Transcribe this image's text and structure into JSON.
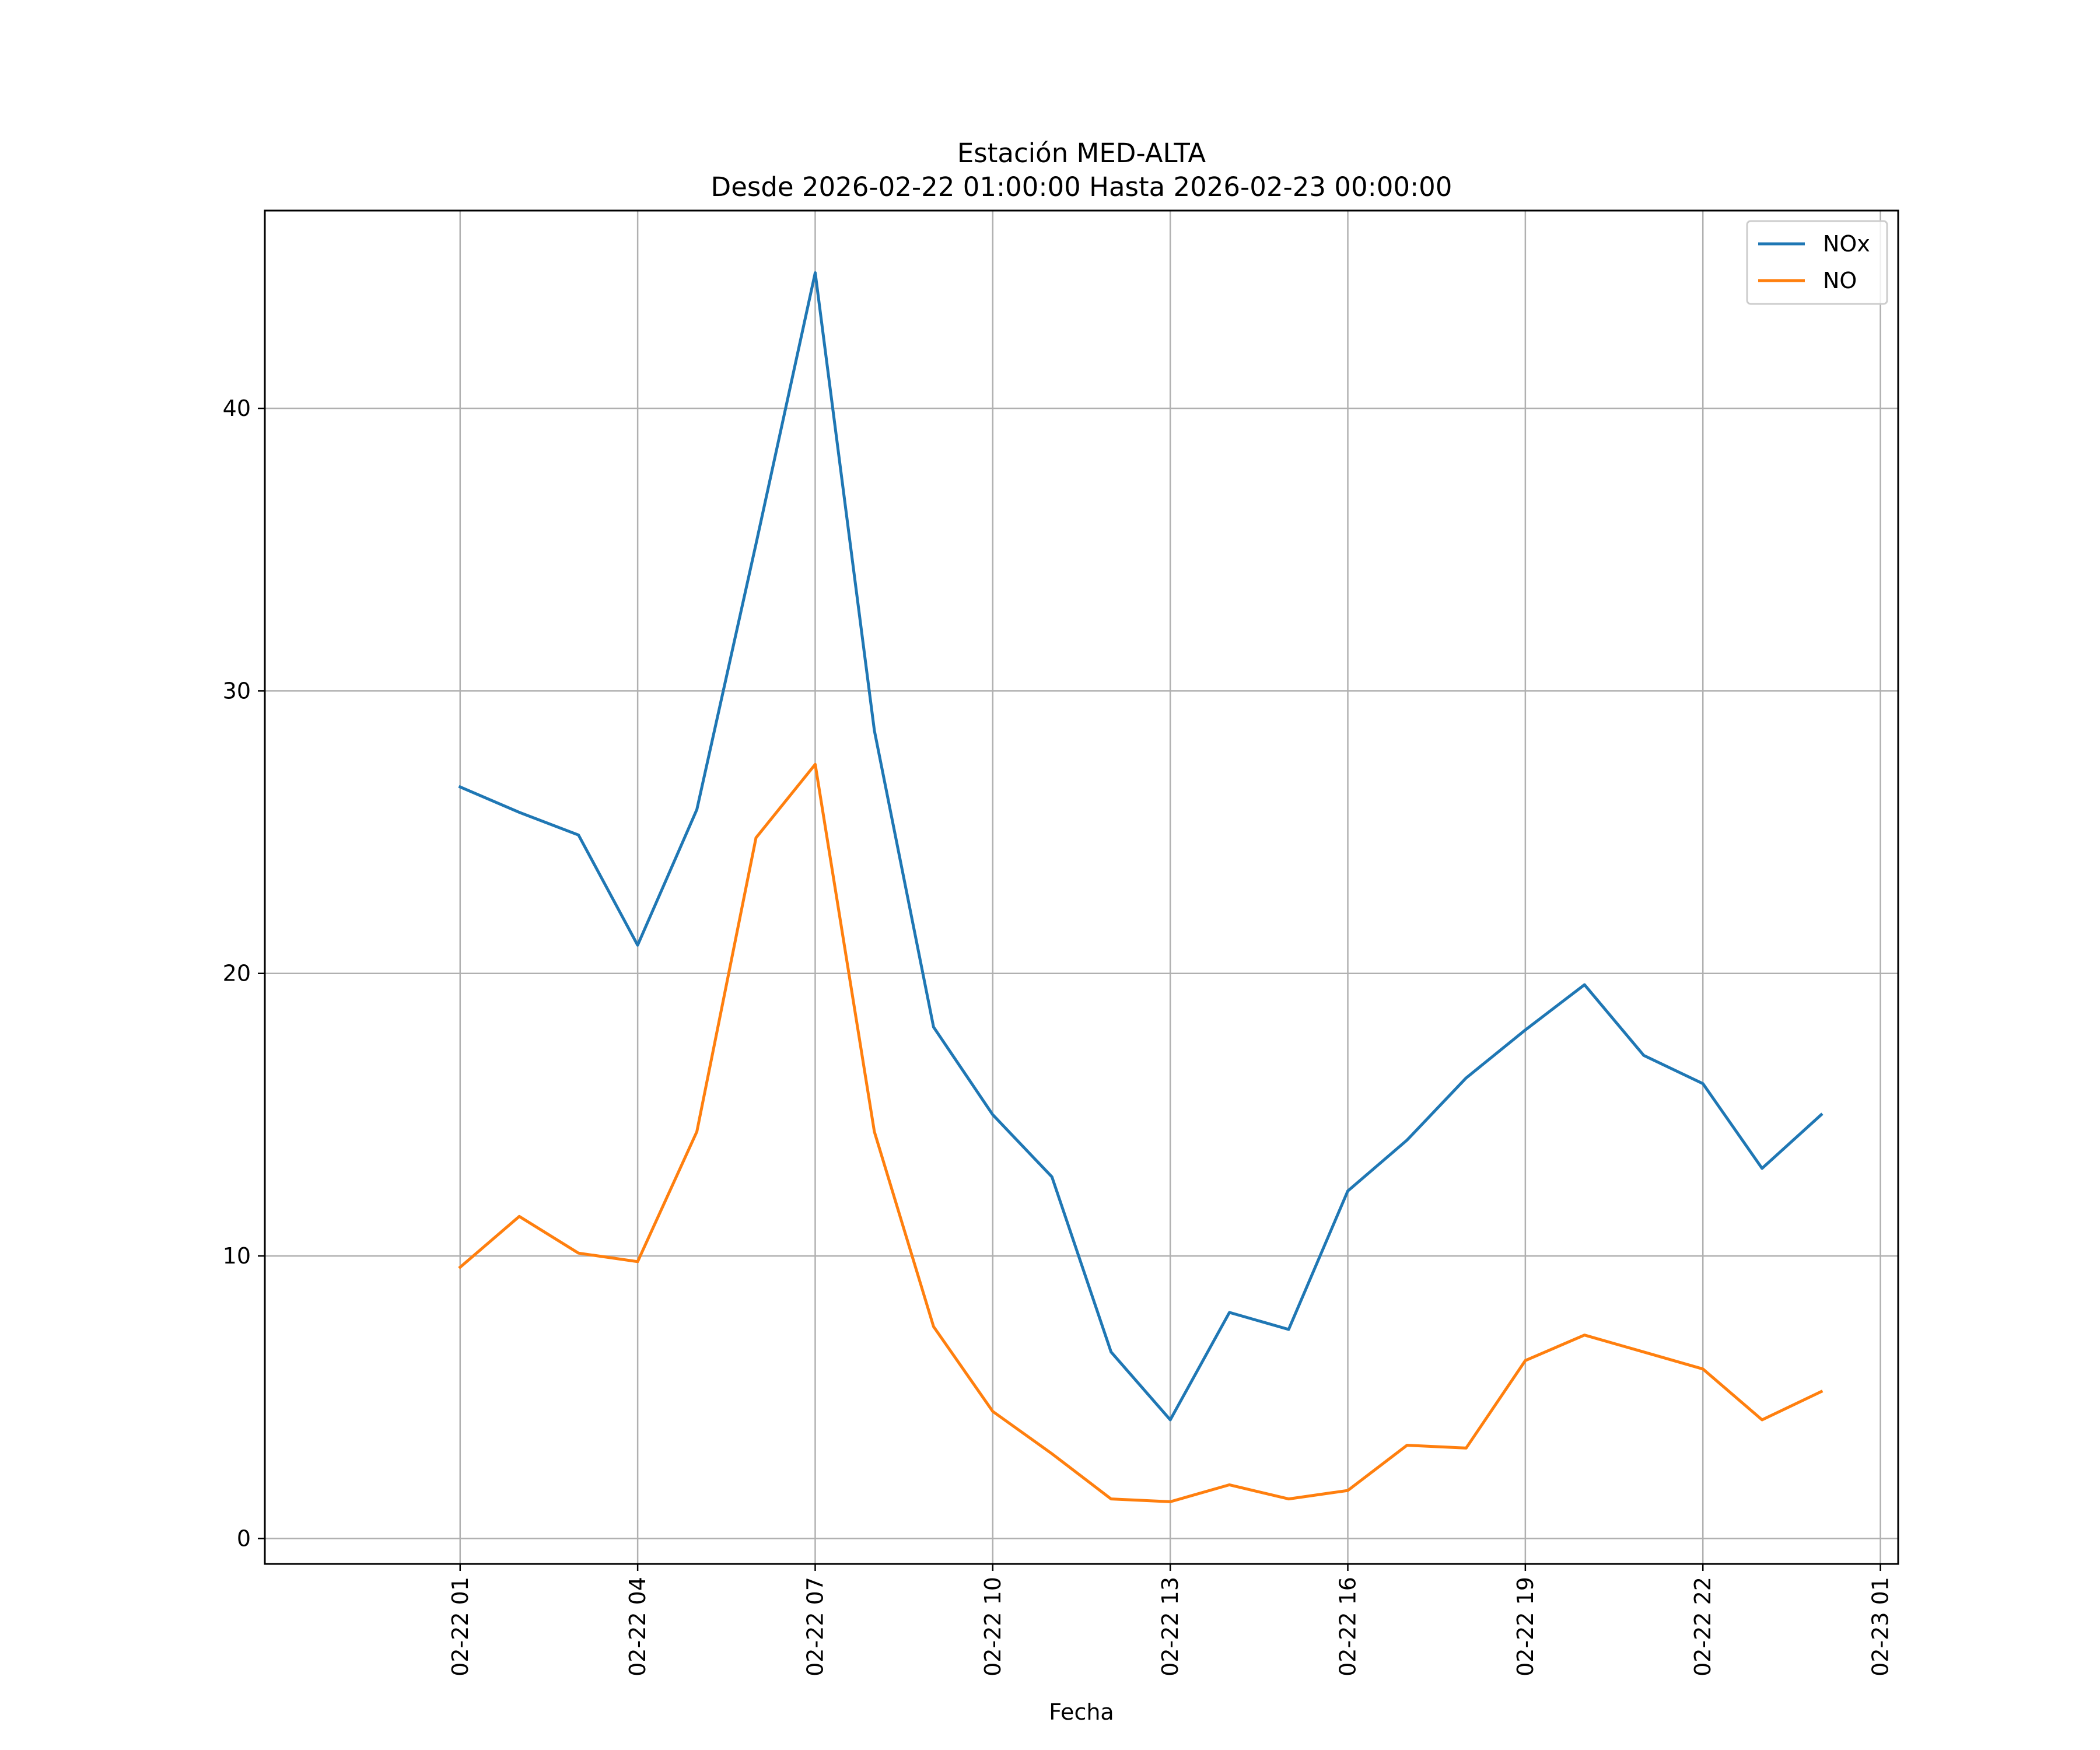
{
  "chart_data": {
    "type": "line",
    "title": "Estación MED-ALTA",
    "subtitle": "Desde 2026-02-22 01:00:00 Hasta 2026-02-23 00:00:00",
    "xlabel": "Fecha",
    "ylabel": "",
    "x": [
      "2026-02-22 01:00",
      "2026-02-22 02:00",
      "2026-02-22 03:00",
      "2026-02-22 04:00",
      "2026-02-22 05:00",
      "2026-02-22 06:00",
      "2026-02-22 07:00",
      "2026-02-22 08:00",
      "2026-02-22 09:00",
      "2026-02-22 10:00",
      "2026-02-22 11:00",
      "2026-02-22 12:00",
      "2026-02-22 13:00",
      "2026-02-22 14:00",
      "2026-02-22 15:00",
      "2026-02-22 16:00",
      "2026-02-22 17:00",
      "2026-02-22 18:00",
      "2026-02-22 19:00",
      "2026-02-22 20:00",
      "2026-02-22 21:00",
      "2026-02-22 22:00",
      "2026-02-22 23:00",
      "2026-02-23 00:00"
    ],
    "series": [
      {
        "name": "NOx",
        "color": "#1f77b4",
        "values": [
          26.6,
          25.7,
          24.9,
          21.0,
          25.8,
          35.2,
          44.8,
          28.6,
          18.1,
          15.0,
          12.8,
          6.6,
          4.2,
          8.0,
          7.4,
          12.3,
          14.1,
          16.3,
          18.0,
          19.6,
          17.1,
          16.1,
          13.1,
          15.0
        ]
      },
      {
        "name": "NO",
        "color": "#ff7f0e",
        "values": [
          9.6,
          11.4,
          10.1,
          9.8,
          14.4,
          24.8,
          27.4,
          14.4,
          7.5,
          4.5,
          3.0,
          1.4,
          1.3,
          1.9,
          1.4,
          1.7,
          3.3,
          3.2,
          6.3,
          7.2,
          6.6,
          6.0,
          4.2,
          5.2
        ]
      }
    ],
    "xticks": [
      "02-22 01",
      "02-22 04",
      "02-22 07",
      "02-22 10",
      "02-22 13",
      "02-22 16",
      "02-22 19",
      "02-22 22",
      "02-23 01"
    ],
    "yticks": [
      "0",
      "10",
      "20",
      "30",
      "40"
    ],
    "ylim": [
      -0.9,
      47.0
    ],
    "xlim": [
      "2026-02-21 21:42",
      "2026-02-23 01:18"
    ],
    "grid": true,
    "legend_position": "top-right"
  }
}
